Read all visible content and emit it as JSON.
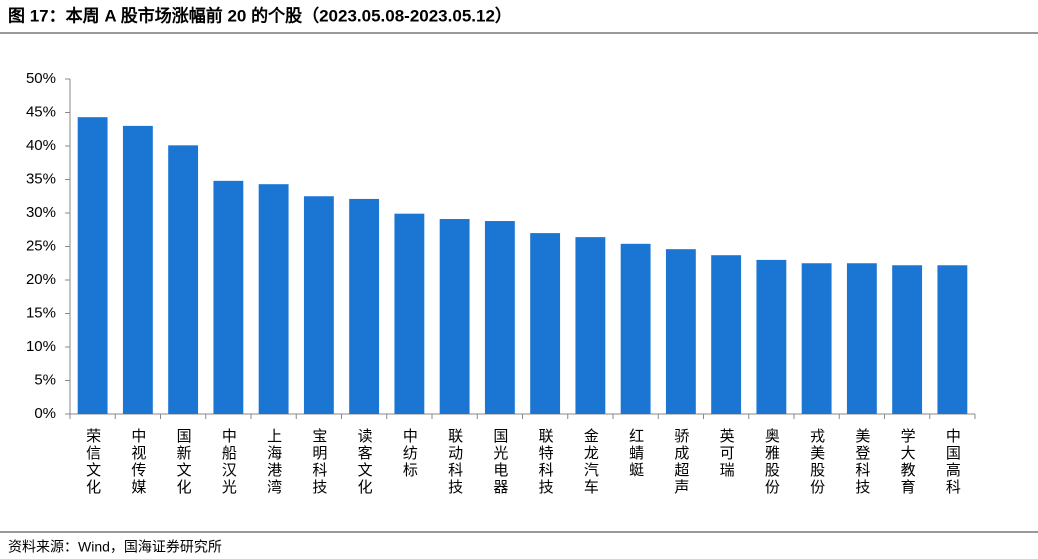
{
  "chart_data": {
    "type": "bar",
    "title": "图 17：本周 A 股市场涨幅前 20 的个股（2023.05.08-2023.05.12）",
    "source": "资料来源：Wind，国海证券研究所",
    "categories": [
      "荣信文化",
      "中视传媒",
      "国新文化",
      "中船汉光",
      "上海港湾",
      "宝明科技",
      "读客文化",
      "中纺标",
      "联动科技",
      "国光电器",
      "联特科技",
      "金龙汽车",
      "红蜻蜓",
      "骄成超声",
      "英可瑞",
      "奥雅股份",
      "戎美股份",
      "美登科技",
      "学大教育",
      "中国高科"
    ],
    "values": [
      44.3,
      43.0,
      40.1,
      34.8,
      34.3,
      32.5,
      32.1,
      29.9,
      29.1,
      28.8,
      27.0,
      26.4,
      25.4,
      24.6,
      23.7,
      23.0,
      22.5,
      22.5,
      22.2,
      22.2
    ],
    "color": "#1a76d2",
    "ylim": [
      0,
      50
    ],
    "yticks": [
      {
        "value": 0,
        "label": "0%"
      },
      {
        "value": 5,
        "label": "5%"
      },
      {
        "value": 10,
        "label": "10%"
      },
      {
        "value": 15,
        "label": "15%"
      },
      {
        "value": 20,
        "label": "20%"
      },
      {
        "value": 25,
        "label": "25%"
      },
      {
        "value": 30,
        "label": "30%"
      },
      {
        "value": 35,
        "label": "35%"
      },
      {
        "value": 40,
        "label": "40%"
      },
      {
        "value": 45,
        "label": "45%"
      },
      {
        "value": 50,
        "label": "50%"
      }
    ],
    "grid": false
  }
}
